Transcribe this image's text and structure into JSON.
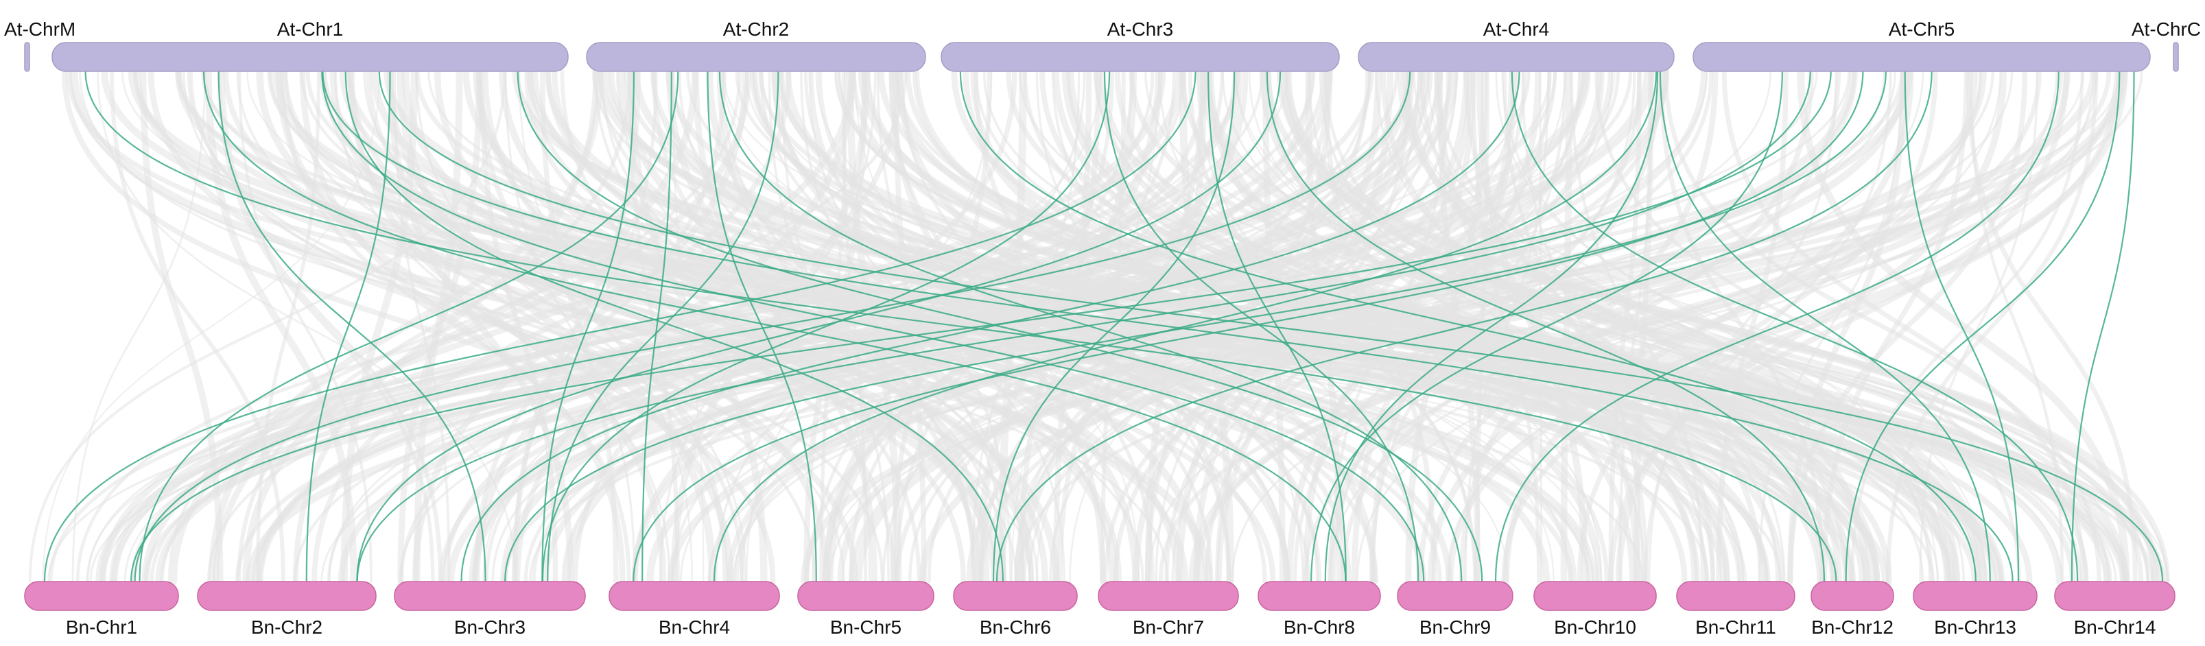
{
  "diagram": {
    "colors": {
      "top_chromosome": "#bcb6dc",
      "top_chromosome_stroke": "#a49ec6",
      "bottom_chromosome": "#e487c2",
      "bottom_chromosome_stroke": "#c9659f",
      "background_link": "#e3e3e3",
      "highlight_link": "#3aaa86",
      "label_text": "#111111"
    },
    "top_genome": {
      "chromosomes": [
        {
          "name": "At-ChrM"
        },
        {
          "name": "At-Chr1"
        },
        {
          "name": "At-Chr2"
        },
        {
          "name": "At-Chr3"
        },
        {
          "name": "At-Chr4"
        },
        {
          "name": "At-Chr5"
        },
        {
          "name": "At-ChrC"
        }
      ]
    },
    "bottom_genome": {
      "chromosomes": [
        {
          "name": "Bn-Chr1"
        },
        {
          "name": "Bn-Chr2"
        },
        {
          "name": "Bn-Chr3"
        },
        {
          "name": "Bn-Chr4"
        },
        {
          "name": "Bn-Chr5"
        },
        {
          "name": "Bn-Chr6"
        },
        {
          "name": "Bn-Chr7"
        },
        {
          "name": "Bn-Chr8"
        },
        {
          "name": "Bn-Chr9"
        },
        {
          "name": "Bn-Chr10"
        },
        {
          "name": "Bn-Chr11"
        },
        {
          "name": "Bn-Chr12"
        },
        {
          "name": "Bn-Chr13"
        },
        {
          "name": "Bn-Chr14"
        }
      ]
    },
    "highlighted_links": [
      [
        "At-Chr1",
        "Bn-Chr3"
      ],
      [
        "At-Chr1",
        "Bn-Chr8"
      ],
      [
        "At-Chr1",
        "Bn-Chr9"
      ],
      [
        "At-Chr1",
        "Bn-Chr12"
      ],
      [
        "At-Chr1",
        "Bn-Chr2"
      ],
      [
        "At-Chr1",
        "Bn-Chr13"
      ],
      [
        "At-Chr1",
        "Bn-Chr14"
      ],
      [
        "At-Chr1",
        "Bn-Chr6"
      ],
      [
        "At-Chr1",
        "Bn-Chr9"
      ],
      [
        "At-Chr2",
        "Bn-Chr3"
      ],
      [
        "At-Chr2",
        "Bn-Chr1"
      ],
      [
        "At-Chr2",
        "Bn-Chr5"
      ],
      [
        "At-Chr2",
        "Bn-Chr4"
      ],
      [
        "At-Chr2",
        "Bn-Chr9"
      ],
      [
        "At-Chr2",
        "Bn-Chr3"
      ],
      [
        "At-Chr3",
        "Bn-Chr1"
      ],
      [
        "At-Chr3",
        "Bn-Chr3"
      ],
      [
        "At-Chr3",
        "Bn-Chr9"
      ],
      [
        "At-Chr3",
        "Bn-Chr8"
      ],
      [
        "At-Chr3",
        "Bn-Chr6"
      ],
      [
        "At-Chr3",
        "Bn-Chr12"
      ],
      [
        "At-Chr3",
        "Bn-Chr2"
      ],
      [
        "At-Chr3",
        "Bn-Chr13"
      ],
      [
        "At-Chr4",
        "Bn-Chr1"
      ],
      [
        "At-Chr4",
        "Bn-Chr8"
      ],
      [
        "At-Chr4",
        "Bn-Chr14"
      ],
      [
        "At-Chr4",
        "Bn-Chr4"
      ],
      [
        "At-Chr4",
        "Bn-Chr13"
      ],
      [
        "At-Chr4",
        "Bn-Chr3"
      ],
      [
        "At-Chr5",
        "Bn-Chr1"
      ],
      [
        "At-Chr5",
        "Bn-Chr3"
      ],
      [
        "At-Chr5",
        "Bn-Chr8"
      ],
      [
        "At-Chr5",
        "Bn-Chr13"
      ],
      [
        "At-Chr5",
        "Bn-Chr14"
      ],
      [
        "At-Chr5",
        "Bn-Chr12"
      ],
      [
        "At-Chr5",
        "Bn-Chr2"
      ],
      [
        "At-Chr5",
        "Bn-Chr4"
      ],
      [
        "At-Chr5",
        "Bn-Chr6"
      ],
      [
        "At-Chr5",
        "Bn-Chr9"
      ]
    ]
  }
}
